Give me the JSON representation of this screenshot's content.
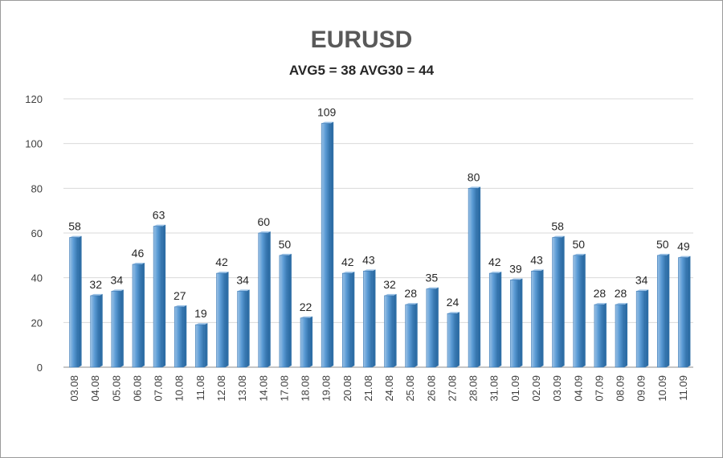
{
  "chart_data": {
    "type": "bar",
    "title": "EURUSD",
    "subtitle": "AVG5 = 38 AVG30 = 44",
    "categories": [
      "03.08",
      "04.08",
      "05.08",
      "06.08",
      "07.08",
      "10.08",
      "11.08",
      "12.08",
      "13.08",
      "14.08",
      "17.08",
      "18.08",
      "19.08",
      "20.08",
      "21.08",
      "24.08",
      "25.08",
      "26.08",
      "27.08",
      "28.08",
      "31.08",
      "01.09",
      "02.09",
      "03.09",
      "04.09",
      "07.09",
      "08.09",
      "09.09",
      "10.09",
      "11.09"
    ],
    "values": [
      58,
      32,
      34,
      46,
      63,
      27,
      19,
      42,
      34,
      60,
      50,
      22,
      109,
      42,
      43,
      32,
      28,
      35,
      24,
      80,
      42,
      39,
      43,
      58,
      50,
      28,
      28,
      34,
      50,
      49
    ],
    "ylim": [
      0,
      120
    ],
    "yticks": [
      0,
      20,
      40,
      60,
      80,
      100,
      120
    ],
    "grid": true,
    "legend": "none",
    "bar_color": "#5b9bd5",
    "bar_color_light": "#9dc3e6",
    "bar_color_dark": "#2e6ea6"
  }
}
